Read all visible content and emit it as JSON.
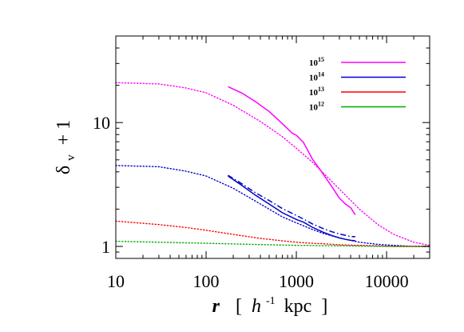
{
  "chart_data": {
    "type": "line",
    "title": "",
    "xlabel": {
      "var": "r",
      "open": "[",
      "unit_h": "h",
      "unit_h_exp": "-1",
      "unit_rest": "kpc",
      "close": "]"
    },
    "ylabel": {
      "base": "δ",
      "sub": "v",
      "suffix": "+ 1"
    },
    "xscale": "log",
    "yscale": "log",
    "xlim": [
      10,
      30000
    ],
    "ylim": [
      0.8,
      50
    ],
    "x_ticks": [
      {
        "value": 10,
        "label": "10"
      },
      {
        "value": 100,
        "label": "100"
      },
      {
        "value": 1000,
        "label": "1000"
      },
      {
        "value": 10000,
        "label": "10000"
      }
    ],
    "y_ticks": [
      {
        "value": 1,
        "label": "1"
      },
      {
        "value": 10,
        "label": "10"
      }
    ],
    "grid": false,
    "legend_position": "top-right",
    "legend": [
      {
        "base": "10",
        "exp": "15",
        "color": "#ff00ff"
      },
      {
        "base": "10",
        "exp": "14",
        "color": "#0000cc"
      },
      {
        "base": "10",
        "exp": "13",
        "color": "#ff0000"
      },
      {
        "base": "10",
        "exp": "12",
        "color": "#00aa00"
      }
    ],
    "series": [
      {
        "group": "10^15",
        "style": "dotted",
        "color": "#ff00ff",
        "x": [
          10,
          30,
          60,
          100,
          200,
          400,
          700,
          1000,
          1500,
          2000,
          3000,
          5000,
          8000,
          12000,
          20000,
          30000
        ],
        "y": [
          21,
          20.5,
          19,
          17.4,
          13.8,
          10.2,
          7.7,
          6.2,
          4.8,
          3.9,
          2.9,
          2.0,
          1.5,
          1.25,
          1.08,
          1.02
        ]
      },
      {
        "group": "10^15",
        "style": "solid",
        "color": "#ff00ff",
        "x": [
          175,
          250,
          350,
          500,
          700,
          900,
          1000,
          1200,
          1500,
          2000,
          2500,
          3000,
          3500,
          4000,
          4500
        ],
        "y": [
          19.5,
          17.3,
          14.8,
          12.3,
          9.8,
          8.2,
          7.9,
          6.9,
          5.1,
          3.8,
          3.0,
          2.45,
          2.2,
          2.05,
          1.8
        ]
      },
      {
        "group": "10^14",
        "style": "dotted",
        "color": "#0000cc",
        "x": [
          10,
          30,
          60,
          100,
          200,
          400,
          700,
          1000,
          1500,
          2000,
          3000,
          5000,
          8000,
          12000,
          20000,
          30000
        ],
        "y": [
          4.5,
          4.4,
          4.05,
          3.7,
          2.95,
          2.2,
          1.73,
          1.55,
          1.37,
          1.27,
          1.17,
          1.08,
          1.04,
          1.02,
          1.0,
          1.0
        ]
      },
      {
        "group": "10^14",
        "style": "solid",
        "color": "#0000cc",
        "x": [
          175,
          250,
          350,
          500,
          700,
          1000,
          1200,
          1500,
          2000,
          2500,
          3000,
          3500,
          4000,
          4500
        ],
        "y": [
          3.7,
          3.1,
          2.6,
          2.2,
          1.87,
          1.65,
          1.57,
          1.43,
          1.3,
          1.22,
          1.17,
          1.14,
          1.12,
          1.11
        ]
      },
      {
        "group": "10^14",
        "style": "dashdot",
        "color": "#0000cc",
        "x": [
          175,
          250,
          350,
          500,
          700,
          1000,
          1200,
          1500,
          2000,
          2500,
          3000,
          3500,
          4000,
          4500
        ],
        "y": [
          3.75,
          3.2,
          2.72,
          2.35,
          2.02,
          1.78,
          1.66,
          1.52,
          1.39,
          1.31,
          1.26,
          1.23,
          1.2,
          1.2
        ]
      },
      {
        "group": "10^13",
        "style": "dotted",
        "color": "#ff0000",
        "x": [
          10,
          30,
          60,
          100,
          200,
          400,
          700,
          1000,
          1500,
          2000,
          3000,
          5000,
          8000,
          12000,
          20000,
          30000
        ],
        "y": [
          1.6,
          1.5,
          1.42,
          1.35,
          1.25,
          1.16,
          1.11,
          1.08,
          1.06,
          1.05,
          1.03,
          1.02,
          1.01,
          1.0,
          1.0,
          1.0
        ]
      },
      {
        "group": "10^12",
        "style": "dotted",
        "color": "#00aa00",
        "x": [
          10,
          30,
          100,
          300,
          1000,
          3000,
          10000,
          30000
        ],
        "y": [
          1.1,
          1.08,
          1.06,
          1.04,
          1.02,
          1.01,
          1.0,
          1.0
        ]
      }
    ]
  }
}
